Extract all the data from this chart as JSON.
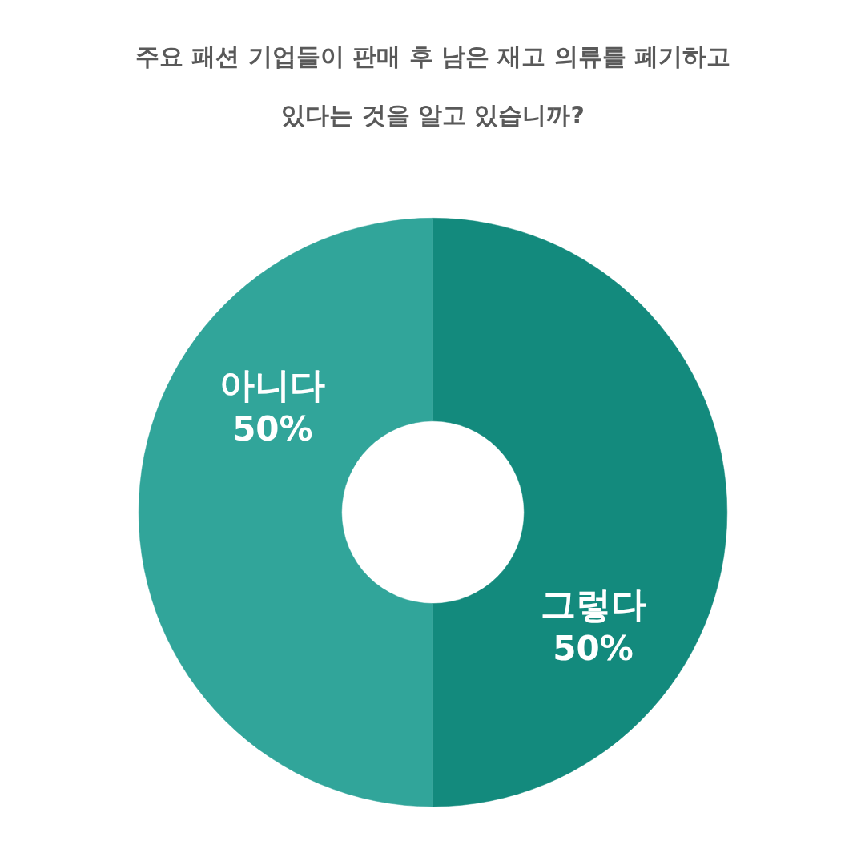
{
  "chart_data": {
    "type": "donut",
    "title": "주요 패션 기업들이 판매 후 남은 재고 의류를 폐기하고 있다는 것을 알고 있습니까?",
    "categories": [
      "그렇다",
      "아니다"
    ],
    "values": [
      50,
      50
    ],
    "colors": [
      "#138a7d",
      "#31a59a"
    ],
    "value_labels": [
      "50%",
      "50%"
    ]
  }
}
